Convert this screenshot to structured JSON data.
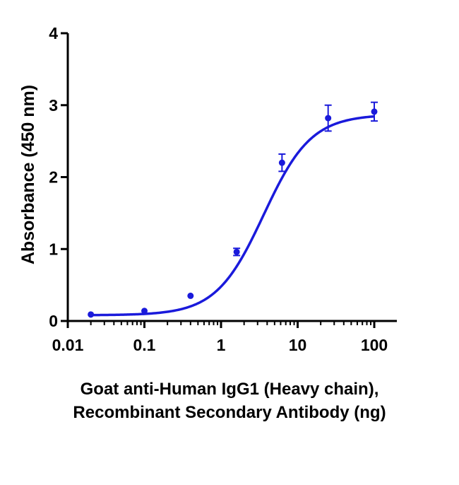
{
  "chart_data": {
    "type": "scatter",
    "title": "",
    "xlabel": "Goat anti-Human IgG1 (Heavy chain), Recombinant Secondary Antibody (ng)",
    "xlabel_lines": [
      "Goat anti-Human IgG1 (Heavy chain),",
      "Recombinant Secondary Antibody (ng)"
    ],
    "ylabel": "Absorbance (450 nm)",
    "x_scale": "log",
    "xlim": [
      0.01,
      200
    ],
    "ylim": [
      0,
      4
    ],
    "x_ticks": [
      0.01,
      0.1,
      1,
      10,
      100
    ],
    "x_tick_labels": [
      "0.01",
      "0.1",
      "1",
      "10",
      "100"
    ],
    "y_ticks": [
      0,
      1,
      2,
      3,
      4
    ],
    "y_tick_labels": [
      "0",
      "1",
      "2",
      "3",
      "4"
    ],
    "grid": false,
    "color": "#1a1adb",
    "series": [
      {
        "points": [
          {
            "x": 0.02,
            "y": 0.09,
            "err": 0.01
          },
          {
            "x": 0.1,
            "y": 0.14,
            "err": 0.01
          },
          {
            "x": 0.4,
            "y": 0.35,
            "err": 0.01
          },
          {
            "x": 1.6,
            "y": 0.96,
            "err": 0.05
          },
          {
            "x": 6.25,
            "y": 2.2,
            "err": 0.12
          },
          {
            "x": 25,
            "y": 2.82,
            "err": 0.18
          },
          {
            "x": 100,
            "y": 2.91,
            "err": 0.13
          }
        ],
        "fit": {
          "bottom": 0.08,
          "top": 2.87,
          "ec50": 3.6,
          "hill": 1.4
        }
      }
    ]
  }
}
